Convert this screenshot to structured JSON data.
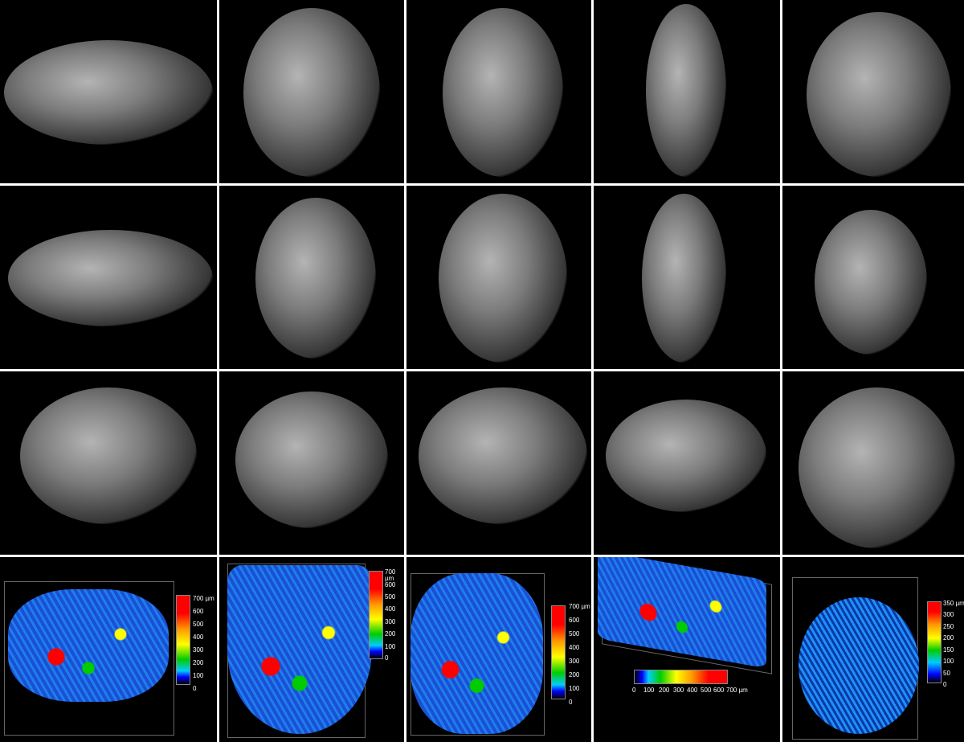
{
  "figure": {
    "colorbars": [
      {
        "labels": [
          "700 µm",
          "600",
          "500",
          "400",
          "300",
          "200",
          "100",
          "0"
        ]
      },
      {
        "labels": [
          "700 µm",
          "600",
          "500",
          "400",
          "300",
          "200",
          "100",
          "0"
        ]
      },
      {
        "labels": [
          "700 µm",
          "600",
          "500",
          "400",
          "300",
          "200",
          "100",
          "0"
        ]
      },
      {
        "labels": [
          "0",
          "100",
          "200",
          "300",
          "400",
          "500",
          "600",
          "700 µm"
        ]
      },
      {
        "labels": [
          "350 µm",
          "300",
          "250",
          "200",
          "150",
          "100",
          "50",
          "0"
        ]
      }
    ],
    "colormap": [
      "#000000",
      "#0000ff",
      "#00ccff",
      "#00cc00",
      "#ffff00",
      "#ff9900",
      "#ff0000"
    ]
  }
}
